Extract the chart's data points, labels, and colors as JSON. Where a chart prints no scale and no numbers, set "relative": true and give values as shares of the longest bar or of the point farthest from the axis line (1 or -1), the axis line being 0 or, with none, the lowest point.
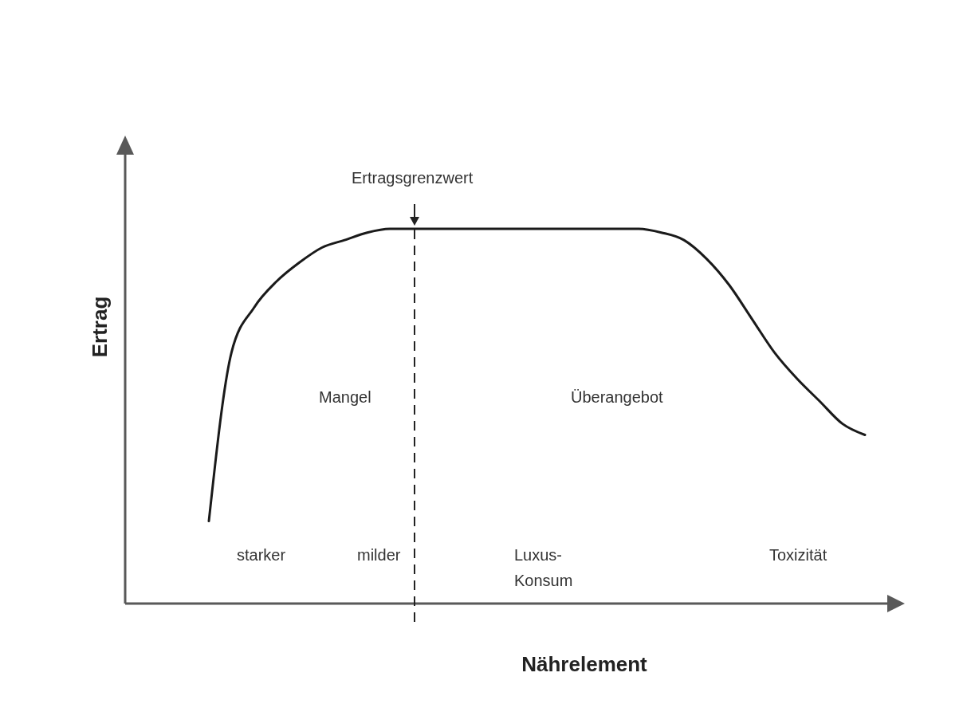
{
  "chart_data": {
    "type": "line",
    "relative": true,
    "xlabel": "Nährelement",
    "ylabel": "Ertrag",
    "categories": [
      null,
      null,
      null,
      null,
      null,
      null,
      null,
      null,
      null,
      null,
      null,
      null,
      null,
      null,
      null,
      null,
      null,
      null,
      null,
      null,
      null,
      null,
      null,
      null,
      null,
      null,
      null,
      null,
      null,
      null
    ],
    "series": [
      {
        "color": "#1a1a1a",
        "values": [
          0.22,
          0.67,
          0.79,
          0.86,
          0.91,
          0.95,
          0.97,
          0.99,
          1,
          1,
          1,
          1,
          1,
          1,
          1,
          1,
          1,
          1,
          1,
          1,
          0.99,
          0.97,
          0.92,
          0.85,
          0.76,
          0.67,
          0.6,
          0.54,
          0.48,
          0.45
        ]
      }
    ],
    "marker": "none",
    "line_style": "solid",
    "annotations": [
      "Mangel",
      "Überangebot",
      "starker",
      "milder",
      "Luxus-\nKonsum",
      "Toxizität",
      "Ertragsgrenzwert"
    ]
  }
}
